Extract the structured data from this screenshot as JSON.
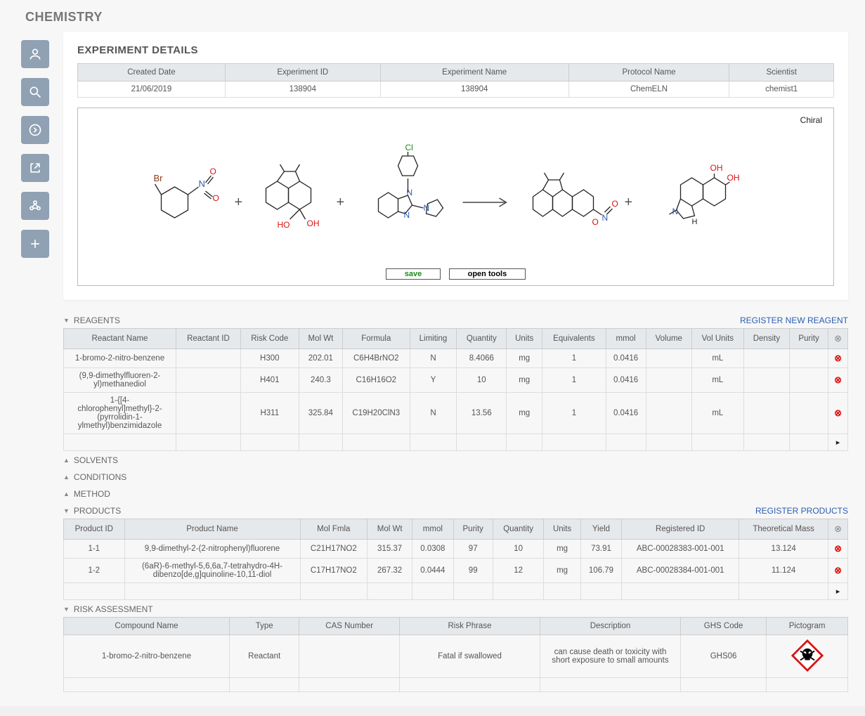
{
  "page_title": "CHEMISTRY",
  "experiment_details": {
    "heading": "EXPERIMENT DETAILS",
    "headers": [
      "Created Date",
      "Experiment ID",
      "Experiment Name",
      "Protocol Name",
      "Scientist"
    ],
    "row": [
      "21/06/2019",
      "138904",
      "138904",
      "ChemELN",
      "chemist1"
    ]
  },
  "scheme": {
    "chiral_label": "Chiral",
    "save_label": "save",
    "open_tools_label": "open tools",
    "atom_colors": {
      "O": "#d11",
      "N": "#2a5db0",
      "Cl": "#1a8a1a",
      "Br": "#8a3a1a"
    }
  },
  "reagents": {
    "heading": "REAGENTS",
    "action": "REGISTER NEW REAGENT",
    "headers": [
      "Reactant Name",
      "Reactant ID",
      "Risk Code",
      "Mol Wt",
      "Formula",
      "Limiting",
      "Quantity",
      "Units",
      "Equivalents",
      "mmol",
      "Volume",
      "Vol Units",
      "Density",
      "Purity"
    ],
    "rows": [
      {
        "name": "1-bromo-2-nitro-benzene",
        "id": "",
        "risk": "H300",
        "mw": "202.01",
        "formula": "C6H4BrNO2",
        "lim": "N",
        "qty": "8.4066",
        "units": "mg",
        "eq": "1",
        "mmol": "0.0416",
        "vol": "",
        "volunits": "mL",
        "dens": "",
        "purity": ""
      },
      {
        "name": "(9,9-dimethylfluoren-2-yl)methanediol",
        "id": "",
        "risk": "H401",
        "mw": "240.3",
        "formula": "C16H16O2",
        "lim": "Y",
        "qty": "10",
        "units": "mg",
        "eq": "1",
        "mmol": "0.0416",
        "vol": "",
        "volunits": "mL",
        "dens": "",
        "purity": ""
      },
      {
        "name": "1-{[4-chlorophenyl]methyl}-2-(pyrrolidin-1-ylmethyl)benzimidazole",
        "id": "",
        "risk": "H311",
        "mw": "325.84",
        "formula": "C19H20ClN3",
        "lim": "N",
        "qty": "13.56",
        "units": "mg",
        "eq": "1",
        "mmol": "0.0416",
        "vol": "",
        "volunits": "mL",
        "dens": "",
        "purity": ""
      }
    ]
  },
  "sections": {
    "solvents": "SOLVENTS",
    "conditions": "CONDITIONS",
    "method": "METHOD"
  },
  "products": {
    "heading": "PRODUCTS",
    "action": "REGISTER PRODUCTS",
    "headers": [
      "Product ID",
      "Product Name",
      "Mol Fmla",
      "Mol Wt",
      "mmol",
      "Purity",
      "Quantity",
      "Units",
      "Yield",
      "Registered ID",
      "Theoretical Mass"
    ],
    "rows": [
      {
        "id": "1-1",
        "name": "9,9-dimethyl-2-(2-nitrophenyl)fluorene",
        "fmla": "C21H17NO2",
        "mw": "315.37",
        "mmol": "0.0308",
        "purity": "97",
        "qty": "10",
        "units": "mg",
        "yield": "73.91",
        "reg": "ABC-00028383-001-001",
        "theo": "13.124"
      },
      {
        "id": "1-2",
        "name": "(6aR)-6-methyl-5,6,6a,7-tetrahydro-4H-dibenzo[de,g]quinoline-10,11-diol",
        "fmla": "C17H17NO2",
        "mw": "267.32",
        "mmol": "0.0444",
        "purity": "99",
        "qty": "12",
        "units": "mg",
        "yield": "106.79",
        "reg": "ABC-00028384-001-001",
        "theo": "11.124"
      }
    ]
  },
  "risk": {
    "heading": "RISK ASSESSMENT",
    "headers": [
      "Compound Name",
      "Type",
      "CAS Number",
      "Risk Phrase",
      "Description",
      "GHS Code",
      "Pictogram"
    ],
    "rows": [
      {
        "name": "1-bromo-2-nitro-benzene",
        "type": "Reactant",
        "cas": "",
        "phrase": "Fatal if swallowed",
        "desc": "can cause death or toxicity with short exposure to small amounts",
        "ghs": "GHS06"
      }
    ]
  },
  "colors": {
    "panel_header": "#e6e9ec",
    "link": "#2a5db0",
    "danger": "#d11",
    "side_btn": "#8fa1b3"
  }
}
